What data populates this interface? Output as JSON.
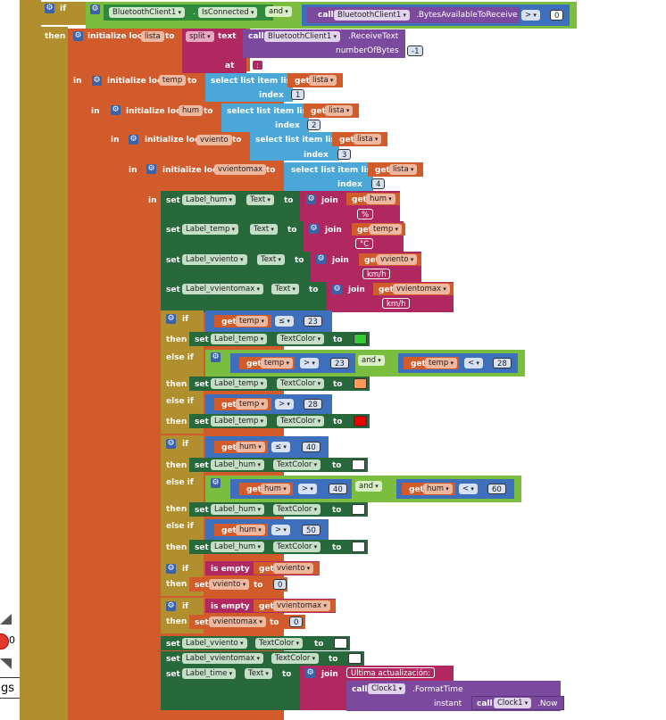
{
  "colors": {
    "control": "#b18f2e",
    "variable": "#d15b2b",
    "component_get": "#2f8a3b",
    "component_set": "#27693a",
    "method": "#7b4a9e",
    "text": "#b0285f",
    "list": "#4aa7d8",
    "math": "#3d6fbd",
    "logic": "#7bbd3f",
    "green": "#33cc33",
    "orange": "#ff9955",
    "red": "#ee0000",
    "white": "#ffffff"
  },
  "kw": {
    "if": "if",
    "then": "then",
    "in": "in",
    "else_if": "else if",
    "init_local": "initialize local",
    "to": "to",
    "set": "set",
    "get": "get",
    "and": "and",
    "call": "call",
    "select": "select list item  list",
    "index": "index",
    "join": "join",
    "is_empty": "is empty",
    "dot": ".",
    "at": "at",
    "instant": "instant",
    "number_of_bytes": "numberOfBytes",
    "split": "split",
    "text": "text"
  },
  "top": {
    "component": "BluetoothClient1",
    "property": "IsConnected",
    "method": ".BytesAvailableToReceive",
    "op": ">",
    "value": "0"
  },
  "receive": {
    "var": "lista",
    "method": ".ReceiveText",
    "bytes": "-1",
    "sep": ":"
  },
  "locals": [
    {
      "name": "temp",
      "index": "1"
    },
    {
      "name": "hum",
      "index": "2"
    },
    {
      "name": "vviento",
      "index": "3"
    },
    {
      "name": "vvientomax",
      "index": "4"
    }
  ],
  "labels": {
    "hum": "Label_hum",
    "temp": "Label_temp",
    "vviento": "Label_vviento",
    "vvientomax": "Label_vvientomax",
    "time": "Label_time",
    "text_prop": "Text",
    "color_prop": "TextColor"
  },
  "suffix": {
    "hum": "%",
    "temp": "°C",
    "wind": "km/h",
    "wind_max": "km/h"
  },
  "temp_cond": {
    "le": "≤",
    "gt": ">",
    "lt": "<",
    "v23": "23",
    "v28": "28"
  },
  "hum_cond": {
    "le": "≤",
    "gt": ">",
    "lt": "<",
    "v40": "40",
    "v60": "60",
    "v50": "50"
  },
  "zero": "0",
  "time_block": {
    "prefix": "Ultima actualización: ",
    "clock": "Clock1",
    "format": ".FormatTime",
    "now": ".Now"
  },
  "left_ui": {
    "count": "0",
    "button": "gs"
  }
}
